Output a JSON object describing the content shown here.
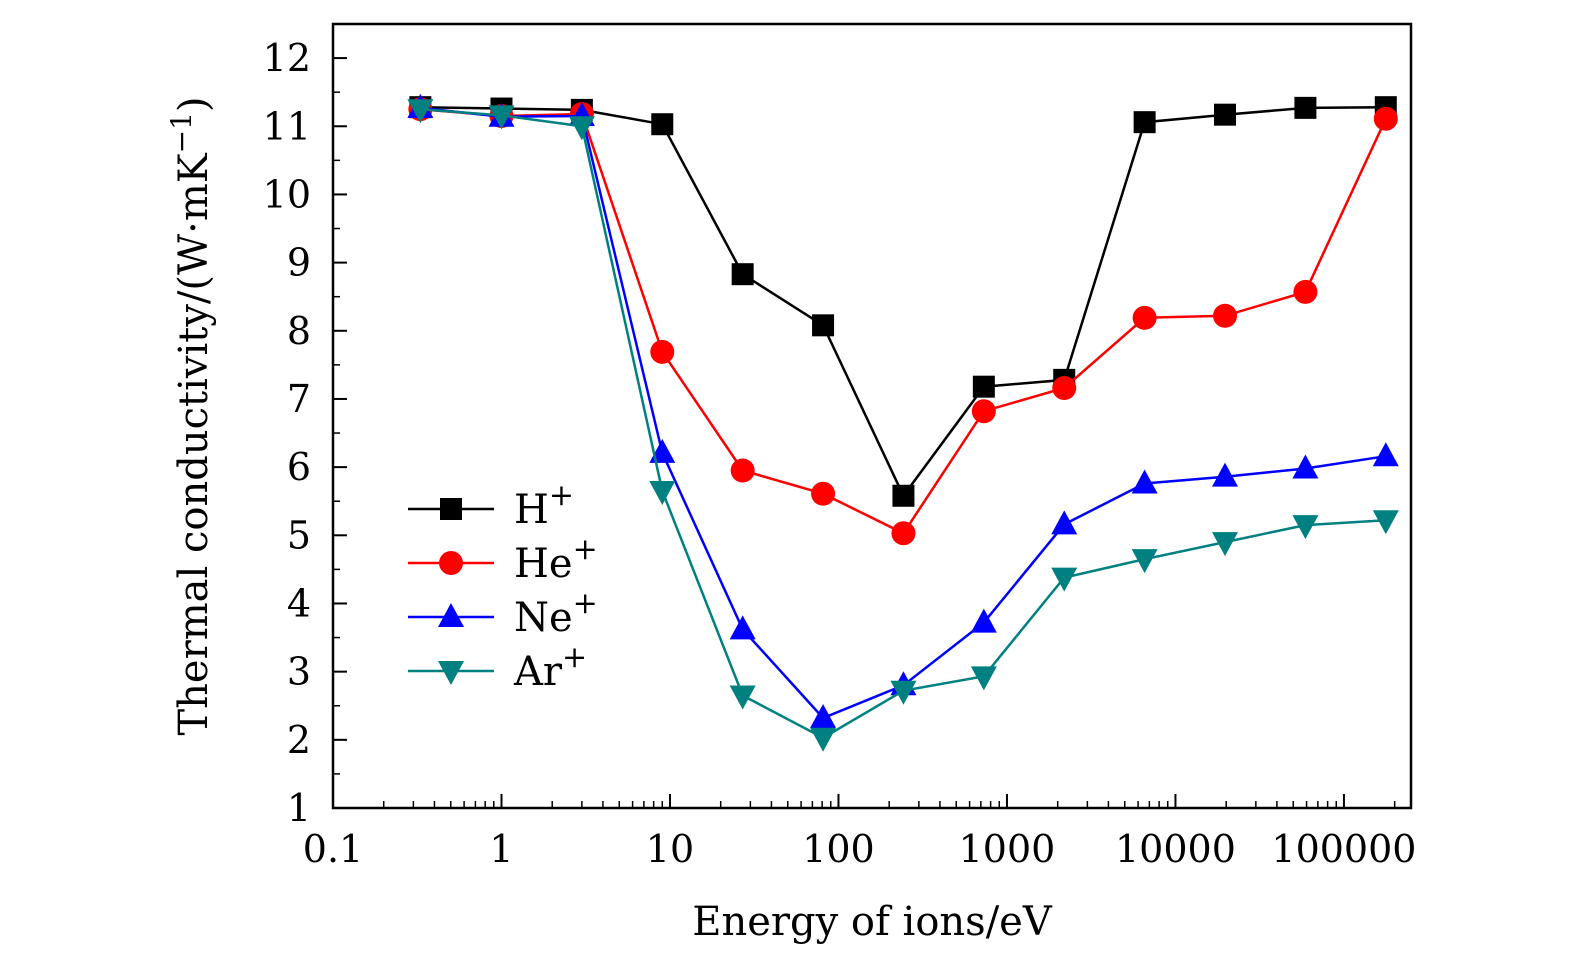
{
  "chart_data": {
    "type": "line",
    "xlabel": "Energy of ions/eV",
    "ylabel": "Thermal conductivity/(W·mK",
    "ylabel_sup": "−1",
    "ylabel_close": ")",
    "x_scale": "log",
    "xlim": [
      0.1,
      250000
    ],
    "ylim": [
      1,
      12.5
    ],
    "x_ticks": [
      0.1,
      1,
      10,
      100,
      1000,
      10000,
      100000
    ],
    "x_tick_labels": [
      "0.1",
      "1",
      "10",
      "100",
      "1000",
      "10000",
      "100000"
    ],
    "y_ticks": [
      1,
      2,
      3,
      4,
      5,
      6,
      7,
      8,
      9,
      10,
      11,
      12
    ],
    "y_tick_labels": [
      "1",
      "2",
      "3",
      "4",
      "5",
      "6",
      "7",
      "8",
      "9",
      "10",
      "11",
      "12"
    ],
    "grid": false,
    "legend_position": "lower-left",
    "x": [
      0.33,
      1,
      3,
      9,
      27,
      81,
      243,
      729,
      2187,
      6561,
      19683,
      59049,
      177147
    ],
    "series": [
      {
        "name": "H",
        "sup": "+",
        "color": "#000000",
        "marker": "square",
        "values": [
          11.28,
          11.26,
          11.24,
          11.03,
          8.83,
          8.08,
          5.58,
          7.18,
          7.28,
          11.06,
          11.17,
          11.27,
          11.28
        ]
      },
      {
        "name": "He",
        "sup": "+",
        "color": "#ff0000",
        "marker": "circle",
        "values": [
          11.25,
          11.15,
          11.18,
          7.69,
          5.95,
          5.61,
          5.03,
          6.82,
          7.16,
          8.19,
          8.22,
          8.57,
          11.11
        ]
      },
      {
        "name": "Ne",
        "sup": "+",
        "color": "#0000ff",
        "marker": "triangle-up",
        "values": [
          11.27,
          11.14,
          11.15,
          6.21,
          3.62,
          2.32,
          2.8,
          3.72,
          5.16,
          5.76,
          5.86,
          5.98,
          6.16
        ]
      },
      {
        "name": "Ar",
        "sup": "+",
        "color": "#008080",
        "marker": "triangle-down",
        "values": [
          11.25,
          11.16,
          11.0,
          5.65,
          2.65,
          2.03,
          2.72,
          2.93,
          4.38,
          4.65,
          4.9,
          5.15,
          5.22
        ]
      }
    ]
  }
}
